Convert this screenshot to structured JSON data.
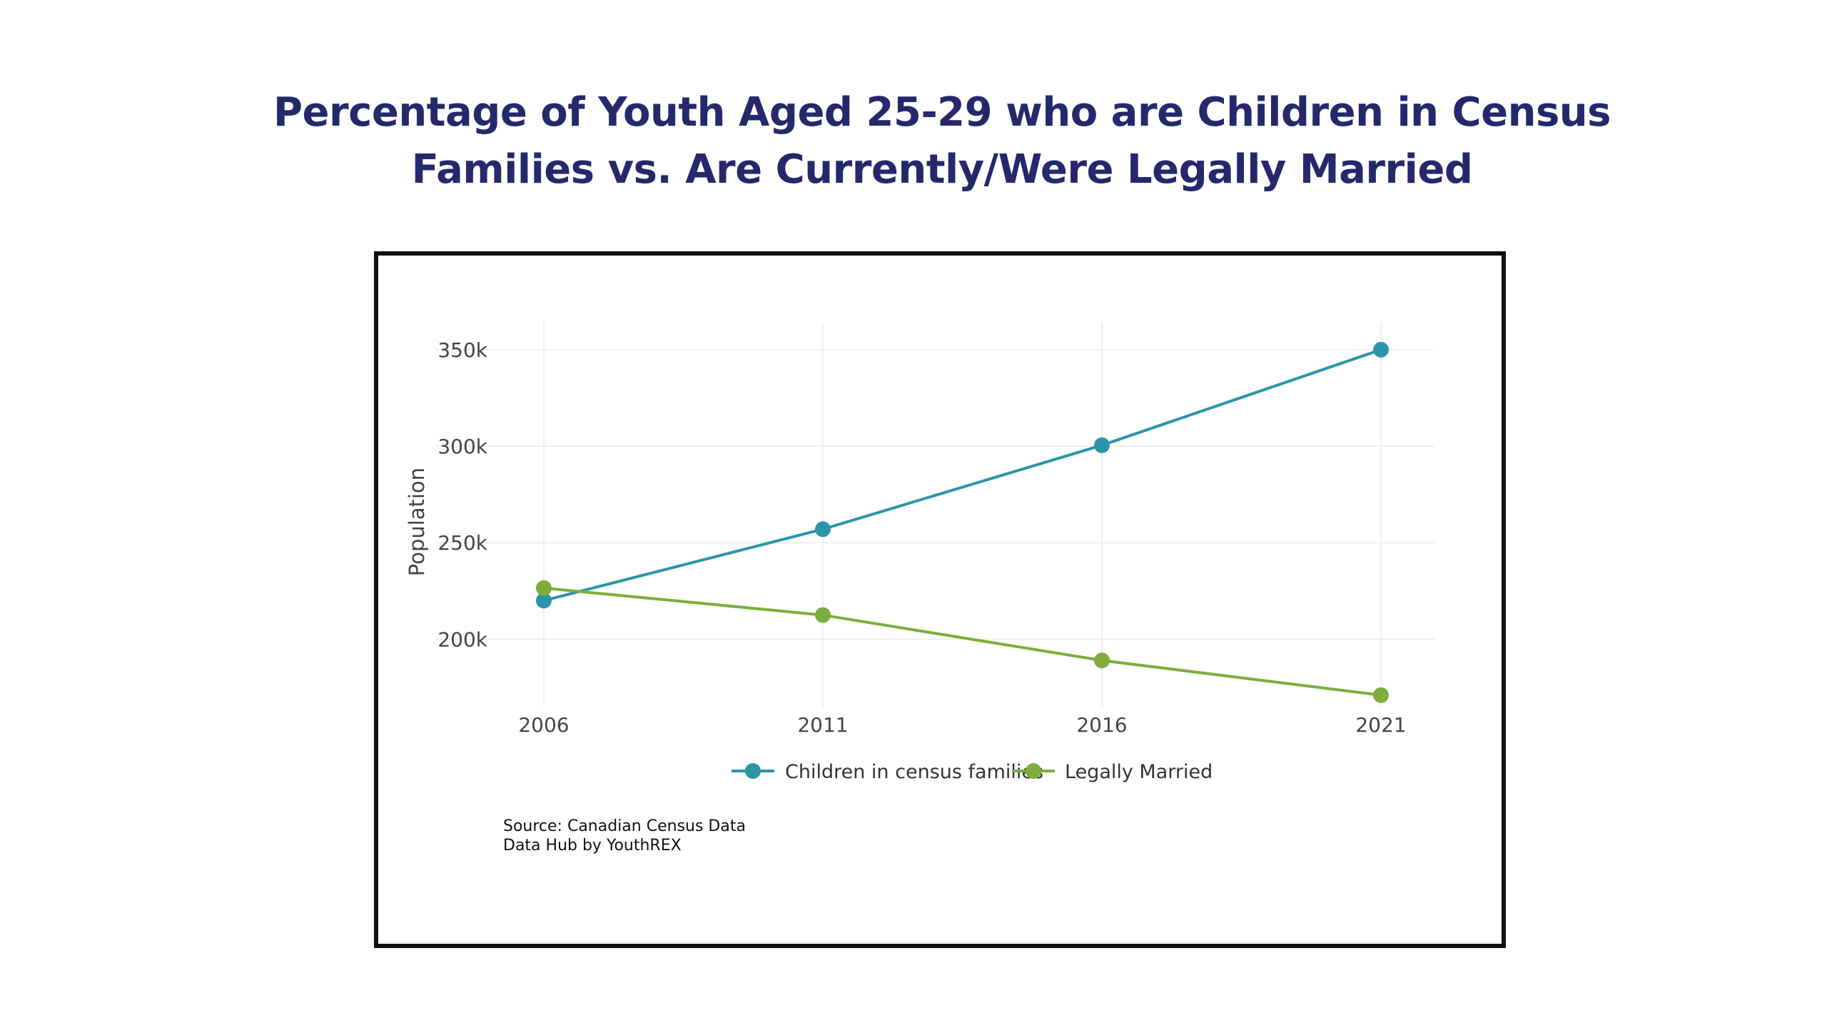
{
  "title_lines": [
    "Percentage of Youth Aged 25-29 who are Children in Census",
    "Families vs. Are Currently/Were Legally Married"
  ],
  "source_lines": [
    "Source: Canadian Census Data",
    "Data Hub by YouthREX"
  ],
  "chart_data": {
    "type": "line",
    "title": "Percentage of Youth Aged 25-29 who are Children in Census Families vs. Are Currently/Were Legally Married",
    "xlabel": "",
    "ylabel": "Population",
    "x": [
      2006,
      2011,
      2016,
      2021
    ],
    "x_tick_labels": [
      "2006",
      "2011",
      "2016",
      "2021"
    ],
    "y_ticks": [
      200000,
      250000,
      300000,
      350000
    ],
    "y_tick_labels": [
      "200k",
      "250k",
      "300k",
      "350k"
    ],
    "ylim": [
      165000,
      364000
    ],
    "grid": true,
    "legend_position": "bottom-center",
    "series": [
      {
        "name": "Children in census families",
        "color": "#2b95a8",
        "values": [
          220000,
          257000,
          300500,
          350000
        ]
      },
      {
        "name": "Legally Married",
        "color": "#7dad3c",
        "values": [
          226500,
          212500,
          189000,
          171000
        ]
      }
    ]
  }
}
